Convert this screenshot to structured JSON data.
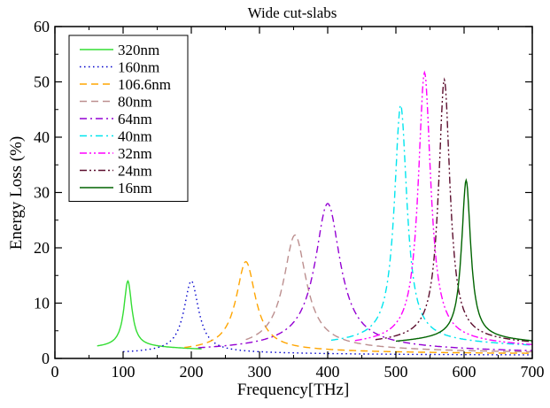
{
  "chart_data": {
    "type": "line",
    "title": "Wide cut-slabs",
    "xlabel": "Frequency[THz]",
    "ylabel": "Energy Loss (%)",
    "xlim": [
      0,
      700
    ],
    "ylim": [
      0,
      60
    ],
    "x_ticks": [
      0,
      100,
      200,
      300,
      400,
      500,
      600,
      700
    ],
    "y_ticks": [
      0,
      10,
      20,
      30,
      40,
      50,
      60
    ],
    "x_tick_labels": [
      "0",
      "100",
      "200",
      "300",
      "400",
      "500",
      "600",
      "700"
    ],
    "y_tick_labels": [
      "0",
      "10",
      "20",
      "30",
      "40",
      "50",
      "60"
    ],
    "grid": false,
    "legend_position": "top-left",
    "series": [
      {
        "name": "320nm",
        "color": "#33dd33",
        "dash": "solid",
        "peak_x": 107,
        "peak_y": 14,
        "gamma": 7,
        "x_start": 62,
        "x_end": 215,
        "floor": 0.9,
        "base_ratio": 0.1
      },
      {
        "name": "160nm",
        "color": "#0000cc",
        "dash": "dot",
        "peak_x": 200,
        "peak_y": 14,
        "gamma": 13,
        "x_start": 100,
        "x_end": 700,
        "floor": 0.6,
        "base_ratio": 0.05
      },
      {
        "name": "106.6nm",
        "color": "#ffa500",
        "dash": "dash",
        "peak_x": 280,
        "peak_y": 17.5,
        "gamma": 17,
        "x_start": 190,
        "x_end": 700,
        "floor": 0.8,
        "base_ratio": 0.06
      },
      {
        "name": "80nm",
        "color": "#bc8f8f",
        "dash": "dash",
        "peak_x": 352,
        "peak_y": 22.3,
        "gamma": 20,
        "x_start": 280,
        "x_end": 700,
        "floor": 0.9,
        "base_ratio": 0.07
      },
      {
        "name": "64nm",
        "color": "#9400d3",
        "dash": "dashdot",
        "peak_x": 400,
        "peak_y": 28,
        "gamma": 22,
        "x_start": 210,
        "x_end": 700,
        "floor": 0.9,
        "base_ratio": 0.07
      },
      {
        "name": "40nm",
        "color": "#00e5ee",
        "dash": "dashdot",
        "peak_x": 507,
        "peak_y": 45.8,
        "gamma": 11,
        "x_start": 405,
        "x_end": 700,
        "floor": 1.5,
        "base_ratio": 0.05
      },
      {
        "name": "32nm",
        "color": "#ff00ff",
        "dash": "dashdotdot",
        "peak_x": 542,
        "peak_y": 51.7,
        "gamma": 11,
        "x_start": 440,
        "x_end": 700,
        "floor": 1.2,
        "base_ratio": 0.05
      },
      {
        "name": "24nm",
        "color": "#5c0e2e",
        "dash": "dashdotdot",
        "peak_x": 571,
        "peak_y": 50.4,
        "gamma": 10,
        "x_start": 470,
        "x_end": 700,
        "floor": 1.5,
        "base_ratio": 0.05
      },
      {
        "name": "16nm",
        "color": "#006400",
        "dash": "solid",
        "peak_x": 603,
        "peak_y": 32.2,
        "gamma": 8,
        "x_start": 500,
        "x_end": 700,
        "floor": 1.5,
        "base_ratio": 0.08
      }
    ]
  }
}
